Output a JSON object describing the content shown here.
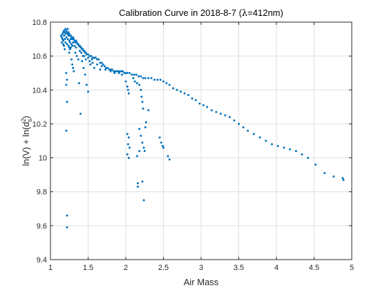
{
  "chart_data": {
    "type": "scatter",
    "title_prefix": "Calibration Curve in 2018-8-7 (",
    "title_lambda": "λ",
    "title_suffix": "=412nm)",
    "xlabel": "Air Mass",
    "ylabel_prefix": "ln(V) + ln(d",
    "ylabel_sup": "2",
    "ylabel_sub": "s",
    "ylabel_suffix": ")",
    "xlim": [
      1,
      5
    ],
    "ylim": [
      9.4,
      10.8
    ],
    "xticks": [
      1,
      1.5,
      2,
      2.5,
      3,
      3.5,
      4,
      4.5,
      5
    ],
    "xtick_labels": [
      "1",
      "1.5",
      "2",
      "2.5",
      "3",
      "3.5",
      "4",
      "4.5",
      "5"
    ],
    "yticks": [
      9.4,
      9.6,
      9.8,
      10,
      10.2,
      10.4,
      10.6,
      10.8
    ],
    "ytick_labels": [
      "9.4",
      "9.6",
      "9.8",
      "10",
      "10.2",
      "10.4",
      "10.6",
      "10.8"
    ],
    "grid": true,
    "marker_color": "#0072BD",
    "axis_color": "#262626",
    "grid_color": "#dfdfdf",
    "points": [
      [
        1.14,
        10.72
      ],
      [
        1.15,
        10.71
      ],
      [
        1.15,
        10.68
      ],
      [
        1.16,
        10.73
      ],
      [
        1.16,
        10.7
      ],
      [
        1.17,
        10.74
      ],
      [
        1.17,
        10.69
      ],
      [
        1.18,
        10.72
      ],
      [
        1.18,
        10.66
      ],
      [
        1.19,
        10.74
      ],
      [
        1.19,
        10.7
      ],
      [
        1.2,
        10.73
      ],
      [
        1.2,
        10.68
      ],
      [
        1.21,
        10.75
      ],
      [
        1.21,
        10.71
      ],
      [
        1.22,
        10.74
      ],
      [
        1.22,
        10.67
      ],
      [
        1.23,
        10.73
      ],
      [
        1.23,
        10.7
      ],
      [
        1.24,
        10.74
      ],
      [
        1.24,
        10.72
      ],
      [
        1.25,
        10.73
      ],
      [
        1.25,
        10.69
      ],
      [
        1.26,
        10.72
      ],
      [
        1.26,
        10.68
      ],
      [
        1.27,
        10.72
      ],
      [
        1.27,
        10.7
      ],
      [
        1.28,
        10.71
      ],
      [
        1.28,
        10.67
      ],
      [
        1.29,
        10.7
      ],
      [
        1.3,
        10.71
      ],
      [
        1.3,
        10.68
      ],
      [
        1.31,
        10.7
      ],
      [
        1.32,
        10.69
      ],
      [
        1.32,
        10.66
      ],
      [
        1.33,
        10.68
      ],
      [
        1.34,
        10.69
      ],
      [
        1.35,
        10.68
      ],
      [
        1.36,
        10.67
      ],
      [
        1.37,
        10.67
      ],
      [
        1.38,
        10.66
      ],
      [
        1.39,
        10.66
      ],
      [
        1.4,
        10.65
      ],
      [
        1.41,
        10.65
      ],
      [
        1.42,
        10.64
      ],
      [
        1.43,
        10.64
      ],
      [
        1.44,
        10.63
      ],
      [
        1.45,
        10.63
      ],
      [
        1.46,
        10.62
      ],
      [
        1.47,
        10.62
      ],
      [
        1.48,
        10.61
      ],
      [
        1.5,
        10.61
      ],
      [
        1.52,
        10.6
      ],
      [
        1.54,
        10.6
      ],
      [
        1.56,
        10.59
      ],
      [
        1.58,
        10.59
      ],
      [
        1.6,
        10.59
      ],
      [
        1.62,
        10.58
      ],
      [
        1.64,
        10.58
      ],
      [
        1.66,
        10.56
      ],
      [
        1.68,
        10.56
      ],
      [
        1.7,
        10.55
      ],
      [
        1.72,
        10.54
      ],
      [
        1.74,
        10.53
      ],
      [
        1.76,
        10.53
      ],
      [
        1.78,
        10.52
      ],
      [
        1.8,
        10.52
      ],
      [
        1.82,
        10.52
      ],
      [
        1.84,
        10.51
      ],
      [
        1.86,
        10.51
      ],
      [
        1.88,
        10.51
      ],
      [
        1.9,
        10.51
      ],
      [
        1.92,
        10.51
      ],
      [
        1.94,
        10.51
      ],
      [
        1.96,
        10.51
      ],
      [
        1.98,
        10.5
      ],
      [
        2.0,
        10.5
      ],
      [
        2.02,
        10.5
      ],
      [
        2.05,
        10.5
      ],
      [
        2.08,
        10.49
      ],
      [
        2.11,
        10.49
      ],
      [
        2.14,
        10.49
      ],
      [
        2.17,
        10.48
      ],
      [
        2.2,
        10.48
      ],
      [
        2.23,
        10.47
      ],
      [
        2.26,
        10.47
      ],
      [
        2.3,
        10.47
      ],
      [
        2.34,
        10.47
      ],
      [
        2.38,
        10.46
      ],
      [
        2.42,
        10.46
      ],
      [
        2.46,
        10.46
      ],
      [
        2.5,
        10.45
      ],
      [
        2.54,
        10.44
      ],
      [
        2.58,
        10.43
      ],
      [
        2.63,
        10.41
      ],
      [
        2.68,
        10.4
      ],
      [
        2.73,
        10.39
      ],
      [
        2.78,
        10.38
      ],
      [
        2.83,
        10.37
      ],
      [
        2.88,
        10.35
      ],
      [
        2.93,
        10.34
      ],
      [
        2.98,
        10.32
      ],
      [
        3.03,
        10.31
      ],
      [
        3.08,
        10.3
      ],
      [
        3.14,
        10.28
      ],
      [
        3.2,
        10.27
      ],
      [
        3.26,
        10.26
      ],
      [
        3.32,
        10.25
      ],
      [
        3.38,
        10.24
      ],
      [
        3.44,
        10.22
      ],
      [
        3.5,
        10.2
      ],
      [
        3.56,
        10.18
      ],
      [
        3.62,
        10.16
      ],
      [
        3.7,
        10.14
      ],
      [
        3.78,
        10.12
      ],
      [
        3.86,
        10.1
      ],
      [
        3.94,
        10.08
      ],
      [
        4.02,
        10.07
      ],
      [
        4.1,
        10.06
      ],
      [
        4.18,
        10.05
      ],
      [
        4.26,
        10.04
      ],
      [
        4.34,
        10.02
      ],
      [
        4.42,
        10.0
      ],
      [
        4.52,
        9.96
      ],
      [
        4.64,
        9.91
      ],
      [
        4.76,
        9.89
      ],
      [
        4.88,
        9.88
      ],
      [
        4.89,
        9.87
      ],
      [
        1.21,
        10.5
      ],
      [
        1.22,
        10.46
      ],
      [
        1.21,
        10.43
      ],
      [
        1.22,
        10.33
      ],
      [
        1.21,
        10.16
      ],
      [
        1.22,
        9.66
      ],
      [
        1.22,
        9.59
      ],
      [
        1.28,
        10.58
      ],
      [
        1.29,
        10.55
      ],
      [
        1.3,
        10.53
      ],
      [
        1.31,
        10.51
      ],
      [
        1.38,
        10.44
      ],
      [
        1.4,
        10.26
      ],
      [
        1.42,
        10.57
      ],
      [
        1.44,
        10.53
      ],
      [
        1.46,
        10.49
      ],
      [
        1.48,
        10.43
      ],
      [
        1.5,
        10.39
      ],
      [
        1.53,
        10.55
      ],
      [
        1.58,
        10.53
      ],
      [
        1.66,
        10.52
      ],
      [
        1.8,
        10.51
      ],
      [
        1.95,
        10.49
      ],
      [
        2.0,
        10.45
      ],
      [
        2.02,
        10.42
      ],
      [
        2.03,
        10.4
      ],
      [
        2.04,
        10.38
      ],
      [
        2.02,
        10.14
      ],
      [
        2.04,
        10.12
      ],
      [
        2.03,
        10.08
      ],
      [
        2.05,
        10.06
      ],
      [
        2.02,
        10.02
      ],
      [
        2.04,
        10.0
      ],
      [
        2.1,
        10.47
      ],
      [
        2.12,
        10.45
      ],
      [
        2.15,
        10.44
      ],
      [
        2.18,
        10.43
      ],
      [
        2.2,
        10.4
      ],
      [
        2.21,
        10.36
      ],
      [
        2.22,
        10.33
      ],
      [
        2.23,
        10.29
      ],
      [
        2.18,
        10.17
      ],
      [
        2.2,
        10.13
      ],
      [
        2.22,
        10.09
      ],
      [
        2.15,
        10.01
      ],
      [
        2.16,
        9.85
      ],
      [
        2.16,
        9.83
      ],
      [
        2.22,
        9.86
      ],
      [
        2.24,
        9.75
      ],
      [
        2.25,
        10.04
      ],
      [
        2.26,
        10.18
      ],
      [
        2.27,
        10.21
      ],
      [
        2.3,
        10.28
      ],
      [
        2.45,
        10.12
      ],
      [
        2.47,
        10.09
      ],
      [
        2.49,
        10.07
      ],
      [
        2.5,
        10.06
      ],
      [
        2.56,
        10.01
      ],
      [
        2.58,
        9.99
      ],
      [
        2.18,
        10.04
      ],
      [
        2.24,
        10.06
      ],
      [
        1.24,
        10.66
      ],
      [
        1.25,
        10.62
      ],
      [
        1.26,
        10.64
      ],
      [
        1.33,
        10.62
      ],
      [
        1.35,
        10.6
      ],
      [
        1.37,
        10.58
      ],
      [
        1.43,
        10.6
      ],
      [
        1.47,
        10.58
      ],
      [
        1.52,
        10.57
      ],
      [
        1.56,
        10.56
      ],
      [
        1.62,
        10.55
      ],
      [
        1.68,
        10.54
      ],
      [
        1.73,
        10.52
      ],
      [
        1.85,
        10.5
      ],
      [
        1.91,
        10.5
      ],
      [
        1.18,
        10.75
      ],
      [
        1.2,
        10.76
      ],
      [
        1.23,
        10.76
      ],
      [
        1.17,
        10.67
      ],
      [
        1.19,
        10.64
      ],
      [
        1.25,
        10.65
      ],
      [
        1.27,
        10.65
      ],
      [
        1.29,
        10.66
      ],
      [
        1.34,
        10.65
      ],
      [
        1.39,
        10.63
      ],
      [
        1.41,
        10.62
      ],
      [
        1.45,
        10.6
      ],
      [
        1.5,
        10.59
      ],
      [
        1.55,
        10.58
      ]
    ]
  }
}
